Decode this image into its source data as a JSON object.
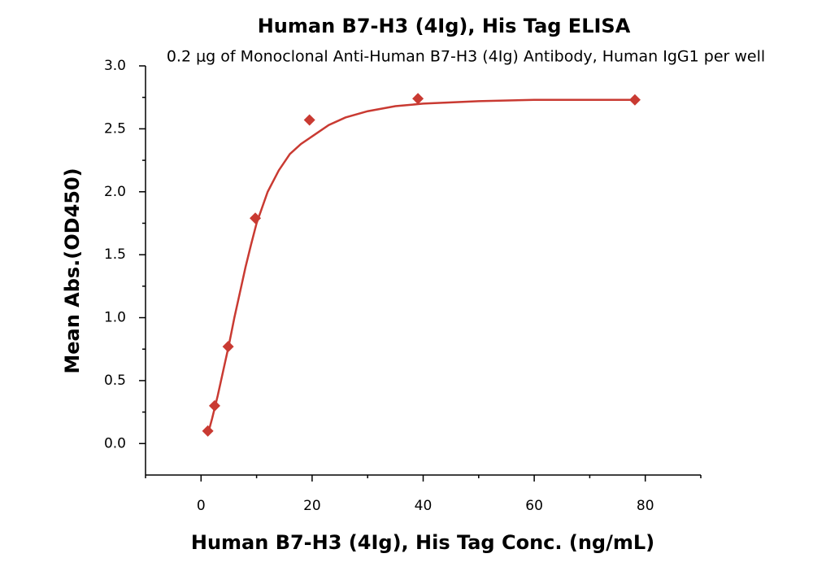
{
  "chart_data": {
    "type": "scatter",
    "title": "Human B7-H3 (4Ig), His Tag ELISA",
    "subtitle": "0.2 μg of Monoclonal Anti-Human B7-H3 (4Ig) Antibody, Human IgG1 per well",
    "x_label": "Human B7-H3 (4Ig), His Tag Conc. (ng/mL)",
    "y_label": "Mean Abs.(OD450)",
    "xlim": [
      -10,
      90
    ],
    "ylim": [
      -0.25,
      3.0
    ],
    "xticks": [
      0,
      20,
      40,
      60,
      80
    ],
    "xminor": [
      -10,
      10,
      30,
      50,
      70,
      90
    ],
    "yticks": [
      {
        "value": 0,
        "label": "0.0"
      },
      {
        "value": 0.5,
        "label": "0.5"
      },
      {
        "value": 1,
        "label": "1.0"
      },
      {
        "value": 1.5,
        "label": "1.5"
      },
      {
        "value": 2,
        "label": "2.0"
      },
      {
        "value": 2.5,
        "label": "2.5"
      },
      {
        "value": 3,
        "label": "3.0"
      }
    ],
    "yminor": [
      0.25,
      0.75,
      1.25,
      1.75,
      2.25,
      2.75
    ],
    "series": [
      {
        "type": "scatter",
        "marker": "diamond",
        "color": "#c93a32",
        "x": [
          1.22,
          2.44,
          4.88,
          9.77,
          19.53,
          39.06,
          78.13
        ],
        "values": [
          0.1,
          0.3,
          0.77,
          1.79,
          2.57,
          2.74,
          2.73
        ]
      },
      {
        "type": "line",
        "color": "#c93a32",
        "x": [
          1.2,
          2,
          3,
          4,
          5,
          6,
          7,
          8,
          9,
          10,
          12,
          14,
          16,
          18,
          20,
          23,
          26,
          30,
          35,
          40,
          50,
          60,
          70,
          78.1
        ],
        "values": [
          0.07,
          0.2,
          0.38,
          0.58,
          0.78,
          1.0,
          1.2,
          1.4,
          1.58,
          1.75,
          2.0,
          2.17,
          2.3,
          2.38,
          2.44,
          2.53,
          2.59,
          2.64,
          2.68,
          2.7,
          2.72,
          2.73,
          2.73,
          2.73
        ]
      }
    ]
  }
}
